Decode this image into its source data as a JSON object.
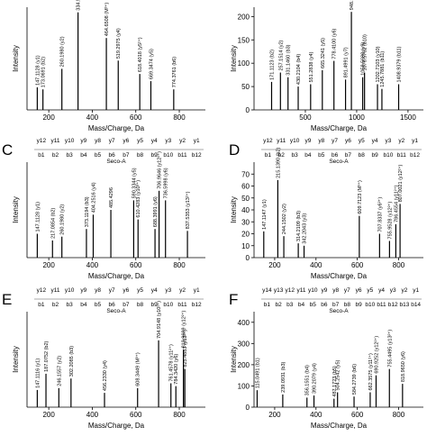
{
  "chart_data": [
    {
      "type": "spectrum",
      "x_label": "Mass/Charge, Da",
      "y_label": "Intensity",
      "xlim": [
        100,
        920
      ],
      "xticks": [
        200,
        400,
        600,
        800
      ],
      "ylim": [
        0,
        100
      ],
      "color": "#000000",
      "x": [
        147.1,
        173.1,
        260.2,
        334.5,
        464.7,
        519.3,
        618.4,
        669.3,
        774.4
      ],
      "values": [
        22,
        20,
        40,
        95,
        70,
        48,
        35,
        28,
        20
      ],
      "peak_labels": [
        "147.1128 (y1)",
        "173.0691 (b2)",
        "260.1980 (y2)",
        "334.5344",
        "464.6508 (M³⁺)",
        "519.2975 (y4)",
        "618.4018 (y5²⁺)",
        "669.3474 (y5)",
        "774.3761 (b6)"
      ]
    },
    {
      "type": "spectrum",
      "x_label": "Mass/Charge, Da",
      "y_label": "Intensity",
      "xlim": [
        0,
        1650
      ],
      "xticks": [
        500,
        1000,
        1500
      ],
      "ylim": [
        0,
        220
      ],
      "yticks": [
        0,
        50,
        100,
        150,
        200
      ],
      "color": "#000000",
      "x": [
        171.1,
        257.2,
        331.1,
        430.2,
        551.3,
        665.3,
        778.4,
        891.5,
        948.5,
        1058.6,
        1076.6,
        1202.7,
        1245.8,
        1408.9
      ],
      "values": [
        60,
        80,
        70,
        50,
        55,
        85,
        105,
        65,
        210,
        70,
        80,
        55,
        45,
        55
      ],
      "peak_labels": [
        "171.1123 (b2)",
        "257.1514 (y2)",
        "331.1460 (b3)",
        "430.2104 (b4)",
        "551.2838 (y4)",
        "665.3241 (y5)",
        "778.4100 (y6)",
        "891.4991 (y7)",
        "948.5182 (y8)",
        "1058.5680 (y9)",
        "1076.5762 (b10)",
        "1202.7103 (y10)",
        "1245.7881 (b11)",
        "1408.9379 (b11)"
      ]
    },
    {
      "type": "spectrum",
      "panel": "C",
      "x_label": "Mass/Charge, Da",
      "y_label": "Intensity",
      "seco": "Seco-A",
      "ions_top": [
        "y12",
        "y11",
        "y10",
        "y9",
        "y8",
        "y7",
        "y6",
        "y5",
        "y4",
        "y3",
        "y2",
        "y1"
      ],
      "ions_bottom": [
        "b1",
        "b2",
        "b3",
        "b4",
        "b5",
        "b6",
        "b7",
        "b8",
        "b9",
        "b10",
        "b11",
        "b12"
      ],
      "xlim": [
        100,
        920
      ],
      "xticks": [
        200,
        400,
        600,
        800
      ],
      "ylim": [
        0,
        100
      ],
      "color": "#000000",
      "x": [
        147.1,
        217.1,
        260.2,
        373.1,
        404.3,
        485.4,
        590.3,
        610.4,
        688.4,
        707.0,
        736.6,
        837.5
      ],
      "values": [
        25,
        18,
        22,
        30,
        45,
        50,
        60,
        40,
        30,
        70,
        60,
        28
      ],
      "peak_labels": [
        "147.1128 (y1)",
        "217.0854 (b2)",
        "260.1980 (y2)",
        "373.1194 (b3)",
        "404.2516 (y4)",
        "485.4296",
        "590.3344 (y5)",
        "610.4283 (y10³⁺)",
        "688.3991 (y6)",
        "706.9646 (y12²⁺)",
        "736.5998 (y6)",
        "837.5353 (y13²⁺)"
      ]
    },
    {
      "type": "spectrum",
      "panel": "D",
      "x_label": "Mass/Charge, Da",
      "y_label": "Intensity",
      "seco": "Seco-A",
      "ions_top": [
        "y12",
        "y11",
        "y10",
        "y9",
        "y8",
        "y7",
        "y6",
        "y5",
        "y4",
        "y3",
        "y2",
        "y1"
      ],
      "ions_bottom": [
        "b1",
        "b2",
        "b3",
        "b4",
        "b5",
        "b6",
        "b7",
        "b8",
        "b9",
        "b10",
        "b11",
        "b12"
      ],
      "xlim": [
        100,
        920
      ],
      "xticks": [
        200,
        400,
        600,
        800
      ],
      "ylim": [
        0,
        80
      ],
      "yticks": [
        0,
        10,
        20,
        30,
        40,
        50,
        60,
        70
      ],
      "color": "#000000",
      "x": [
        147.1,
        215.1,
        244.2,
        314.2,
        342.2,
        609.7,
        707.8,
        755.9,
        786.5,
        807.0
      ],
      "values": [
        22,
        65,
        18,
        12,
        10,
        35,
        20,
        14,
        28,
        45
      ],
      "peak_labels": [
        "147.1147 (y1)",
        "215.1390 (b2)",
        "244.1502 (y2)",
        "314.2109 (b3)",
        "342.2043 (y3)",
        "609.7123 (M³⁺)",
        "707.8337 (y6²⁺)",
        "755.9528 (y12²⁺)",
        "786.4554 (y11²⁺)",
        "807.0021 (y12²⁺)"
      ]
    },
    {
      "type": "spectrum",
      "panel": "E",
      "x_label": "Mass/Charge, Da",
      "y_label": "Intensity",
      "seco": "Seco-A",
      "ions_top": [
        "y12",
        "y11",
        "y10",
        "y9",
        "y8",
        "y7",
        "y6",
        "y5",
        "y4",
        "y3",
        "y2",
        "y1"
      ],
      "ions_bottom": [
        "b1",
        "b2",
        "b3",
        "b4",
        "b5",
        "b6",
        "b7",
        "b8",
        "b9",
        "b10",
        "b11",
        "b12"
      ],
      "xlim": [
        100,
        920
      ],
      "xticks": [
        200,
        400,
        600,
        800
      ],
      "ylim": [
        0,
        100
      ],
      "color": "#000000",
      "x": [
        147.1,
        187.1,
        246.2,
        302.2,
        456.2,
        608.3,
        704.9,
        761.5,
        784.3,
        819.0,
        825.5
      ],
      "values": [
        18,
        35,
        20,
        30,
        15,
        20,
        70,
        25,
        22,
        60,
        40
      ],
      "peak_labels": [
        "147.1116 (y1)",
        "187.0752 (b2)",
        "246.1557 (y2)",
        "302.2085 (b3)",
        "456.2330 (y4)",
        "608.3449 (M³⁺)",
        "704.9148 (y10²⁺)",
        "761.4578 (y11²⁺)",
        "784.3420 (y6)",
        "818.9699 (y12²⁺)",
        "825.4883 (y13²⁺)"
      ]
    },
    {
      "type": "spectrum",
      "panel": "F",
      "x_label": "Mass/Charge, Da",
      "y_label": "Intensity",
      "seco": "Seco-A",
      "ions_top": [
        "y14",
        "y13",
        "y12",
        "y11",
        "y10",
        "y9",
        "y8",
        "y7",
        "y6",
        "y5",
        "y4",
        "y3",
        "y2",
        "y1"
      ],
      "ions_bottom": [
        "b1",
        "b2",
        "b3",
        "b4",
        "b5",
        "b6",
        "b7",
        "b8",
        "b9",
        "b10",
        "b11",
        "b12",
        "b13",
        "b14"
      ],
      "xlim": [
        100,
        920
      ],
      "xticks": [
        200,
        400,
        600,
        800
      ],
      "ylim": [
        0,
        450
      ],
      "yticks": [
        0,
        100,
        200,
        300,
        400
      ],
      "color": "#000000",
      "x": [
        115.0,
        239.1,
        356.2,
        390.2,
        487.2,
        504.3,
        584.3,
        662.4,
        690.9,
        755.4,
        819.0
      ],
      "values": [
        80,
        60,
        45,
        55,
        40,
        70,
        50,
        70,
        150,
        180,
        110
      ],
      "peak_labels": [
        "115.0491 (b1)",
        "239.0931 (b3)",
        "356.1551 (b4)",
        "390.2079 (y4)",
        "487.1723 (b5)",
        "504.2542 (y5)",
        "584.2739 (b6)",
        "662.3575 (y11²⁺)",
        "690.9252 (y12²⁺)",
        "755.4495 (y13²⁺)",
        "818.9650 (y6)"
      ]
    }
  ]
}
